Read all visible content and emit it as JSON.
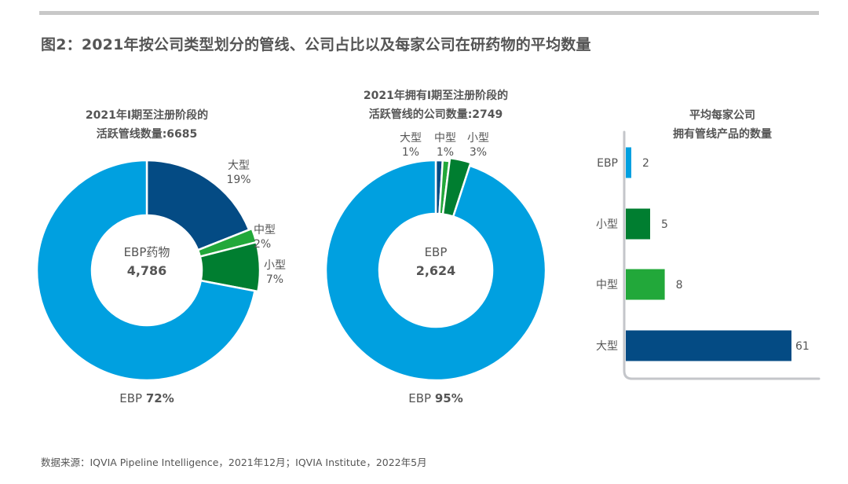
{
  "title": "图2：2021年按公司类型划分的管线、公司占比以及每家公司在研药物的平均数量",
  "source": "数据来源：IQVIA Pipeline Intelligence，2021年12月；IQVIA Institute，2022年5月",
  "colors": {
    "ebp": "#00A0E0",
    "large": "#044B84",
    "medium": "#22A83A",
    "small": "#007E30",
    "axis": "#c4c6ca",
    "text": "#555555"
  },
  "chart_data": [
    {
      "type": "pie",
      "subtype": "donut",
      "title_line1": "2021年I期至注册阶段的",
      "title_line2": "活跃管线数量:6685",
      "center_label": "EBP药物",
      "center_value": "4,786",
      "slices": [
        {
          "key": "large",
          "name": "大型",
          "value": 19,
          "label": "19%"
        },
        {
          "key": "medium",
          "name": "中型",
          "value": 2,
          "label": "2%"
        },
        {
          "key": "small",
          "name": "小型",
          "value": 7,
          "label": "7%"
        },
        {
          "key": "ebp",
          "name": "EBP",
          "value": 72,
          "label": "72%"
        }
      ],
      "bottom_label_name": "EBP",
      "bottom_label_value": "72%"
    },
    {
      "type": "pie",
      "subtype": "donut",
      "title_line1": "2021年拥有I期至注册阶段的",
      "title_line2": "活跃管线的公司数量:2749",
      "center_label": "EBP",
      "center_value": "2,624",
      "slices": [
        {
          "key": "large",
          "name": "大型",
          "value": 1,
          "label": "1%"
        },
        {
          "key": "medium",
          "name": "中型",
          "value": 1,
          "label": "1%"
        },
        {
          "key": "small",
          "name": "小型",
          "value": 3,
          "label": "3%"
        },
        {
          "key": "ebp",
          "name": "EBP",
          "value": 95,
          "label": "95%"
        }
      ],
      "bottom_label_name": "EBP",
      "bottom_label_value": "95%"
    },
    {
      "type": "bar",
      "orientation": "horizontal",
      "title_line1": "平均每家公司",
      "title_line2": "拥有管线产品的数量",
      "categories": [
        "EBP",
        "小型",
        "中型",
        "大型"
      ],
      "keys": [
        "ebp",
        "small",
        "medium",
        "large"
      ],
      "values": [
        2,
        5,
        8,
        61
      ],
      "xlim": [
        0,
        61
      ],
      "grid": false
    }
  ]
}
